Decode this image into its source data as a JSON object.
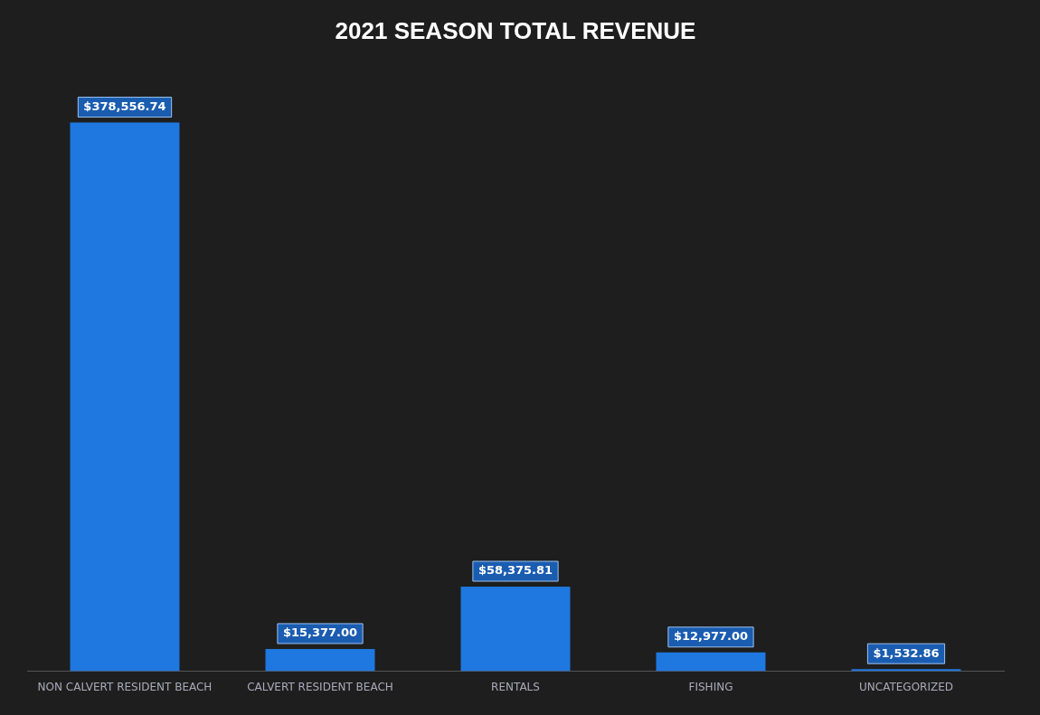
{
  "chart_data": {
    "type": "bar",
    "title": "2021 SEASON TOTAL REVENUE",
    "categories": [
      "NON CALVERT RESIDENT BEACH",
      "CALVERT RESIDENT BEACH",
      "RENTALS",
      "FISHING",
      "UNCATEGORIZED"
    ],
    "values": [
      378556.74,
      15377.0,
      58375.81,
      12977.0,
      1532.86
    ],
    "value_labels": [
      "$378,556.74",
      "$15,377.00",
      "$58,375.81",
      "$12,977.00",
      "$1,532.86"
    ],
    "color": "#1f78e0",
    "grid": false,
    "legend": false,
    "tick_labels": "x"
  }
}
